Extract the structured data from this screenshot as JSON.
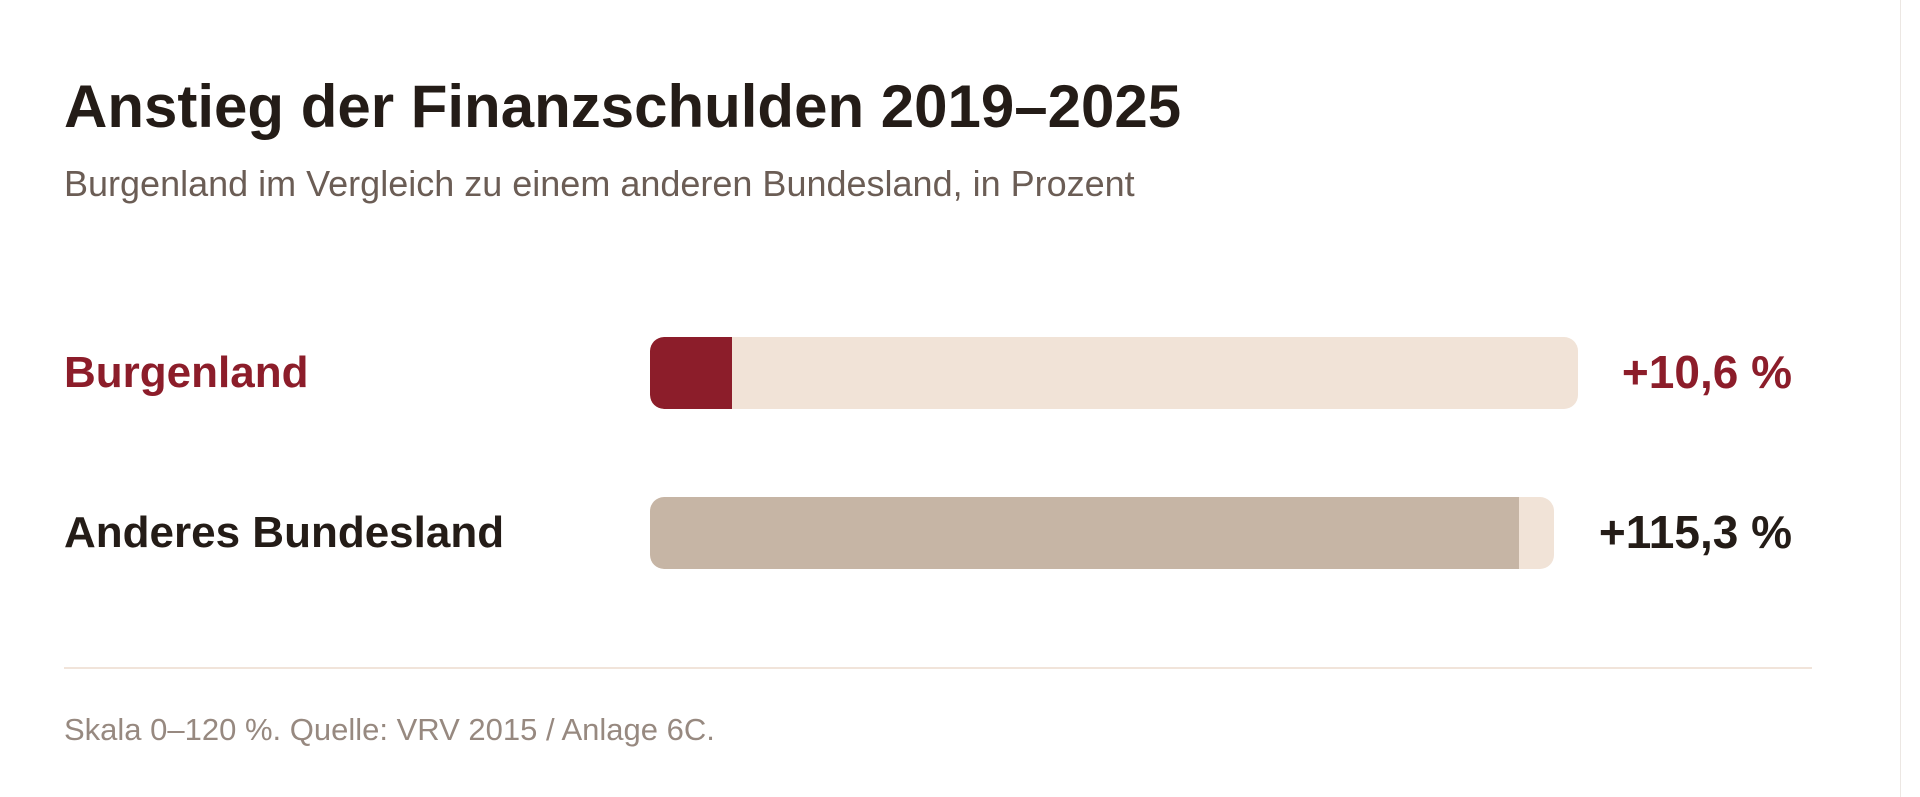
{
  "title": "Anstieg der Finanzschulden 2019–2025",
  "subtitle": "Burgenland im Vergleich zu einem anderen Bundesland, in Prozent",
  "footnote": "Skala 0–120 %. Quelle: VRV 2015 / Anlage 6C.",
  "colors": {
    "highlight": "#8c1d2a",
    "neutral_fill": "#c6b5a5",
    "track": "#f1e3d7",
    "text_dark": "#241c17"
  },
  "chart_data": {
    "type": "bar",
    "orientation": "horizontal",
    "title": "Anstieg der Finanzschulden 2019–2025",
    "subtitle": "Burgenland im Vergleich zu einem anderen Bundesland, in Prozent",
    "categories": [
      "Burgenland",
      "Anderes Bundesland"
    ],
    "values": [
      10.6,
      115.3
    ],
    "value_labels": [
      "+10,6 %",
      "+115,3 %"
    ],
    "xlim": [
      0,
      120
    ],
    "grid": false,
    "legend": "none"
  }
}
